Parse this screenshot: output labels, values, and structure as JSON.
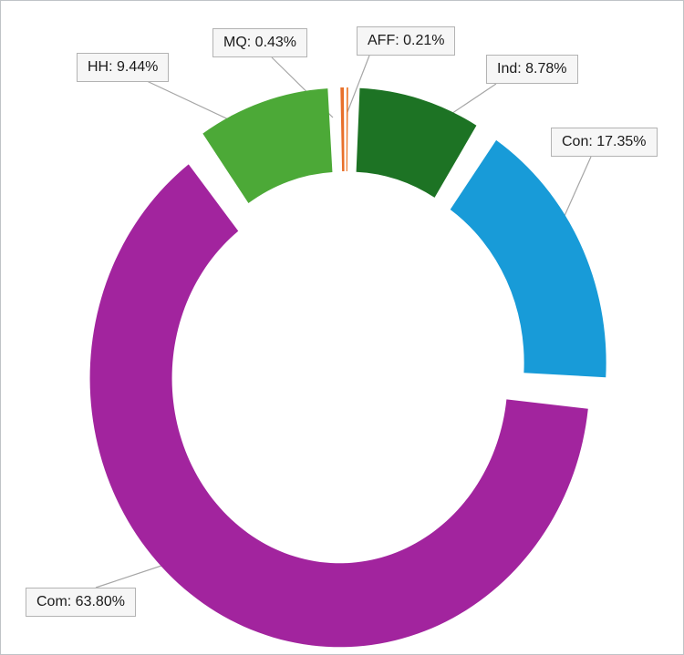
{
  "chart_data": {
    "type": "pie",
    "subtype": "doughnut",
    "title": "",
    "legend": "none",
    "categories": [
      "AFF",
      "Ind",
      "Con",
      "Com",
      "HH",
      "MQ"
    ],
    "values": [
      0.21,
      8.78,
      17.35,
      63.8,
      9.44,
      0.43
    ],
    "unit": "%",
    "colors": [
      "#ed7d31",
      "#1d7324",
      "#189bd8",
      "#a2249e",
      "#4ca937",
      "#e8702a"
    ],
    "start_angle_deg": 0,
    "direction": "clockwise",
    "labels": [
      {
        "category": "HH",
        "text": "HH: 9.44%"
      },
      {
        "category": "MQ",
        "text": "MQ: 0.43%"
      },
      {
        "category": "AFF",
        "text": "AFF: 0.21%"
      },
      {
        "category": "Ind",
        "text": "Ind: 8.78%"
      },
      {
        "category": "Con",
        "text": "Con: 17.35%"
      },
      {
        "category": "Com",
        "text": "Com: 63.80%"
      }
    ],
    "label_leader_lines": true,
    "label_box_border_color": "#b3b3b3",
    "label_box_fill": "#f6f6f6",
    "leader_line_color": "#a6a6a6"
  }
}
